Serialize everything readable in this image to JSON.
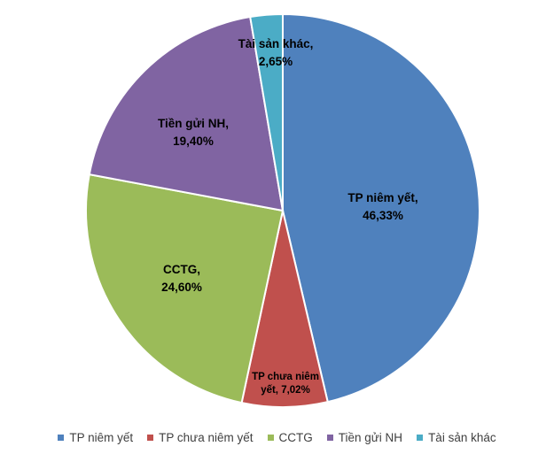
{
  "chart_data": {
    "type": "pie",
    "slices": [
      {
        "name": "TP niêm yết",
        "value": 46.33,
        "color": "#4F81BD",
        "label_lines": [
          "TP niêm yết,",
          "46,33%"
        ]
      },
      {
        "name": "TP chưa niêm yết",
        "value": 7.02,
        "color": "#C0504D",
        "label_lines": [
          "TP chưa niêm",
          "yết, 7,02%"
        ]
      },
      {
        "name": "CCTG",
        "value": 24.6,
        "color": "#9BBB59",
        "label_lines": [
          "CCTG,",
          "24,60%"
        ]
      },
      {
        "name": "Tiền gửi NH",
        "value": 19.4,
        "color": "#8064A2",
        "label_lines": [
          "Tiền gửi NH,",
          "19,40%"
        ]
      },
      {
        "name": "Tài sản khác",
        "value": 2.65,
        "color": "#4BACC6",
        "label_lines": [
          "Tài sản khác,",
          "2,65%"
        ]
      }
    ],
    "start_angle": "12 o'clock",
    "direction": "clockwise",
    "legend_position": "bottom"
  }
}
